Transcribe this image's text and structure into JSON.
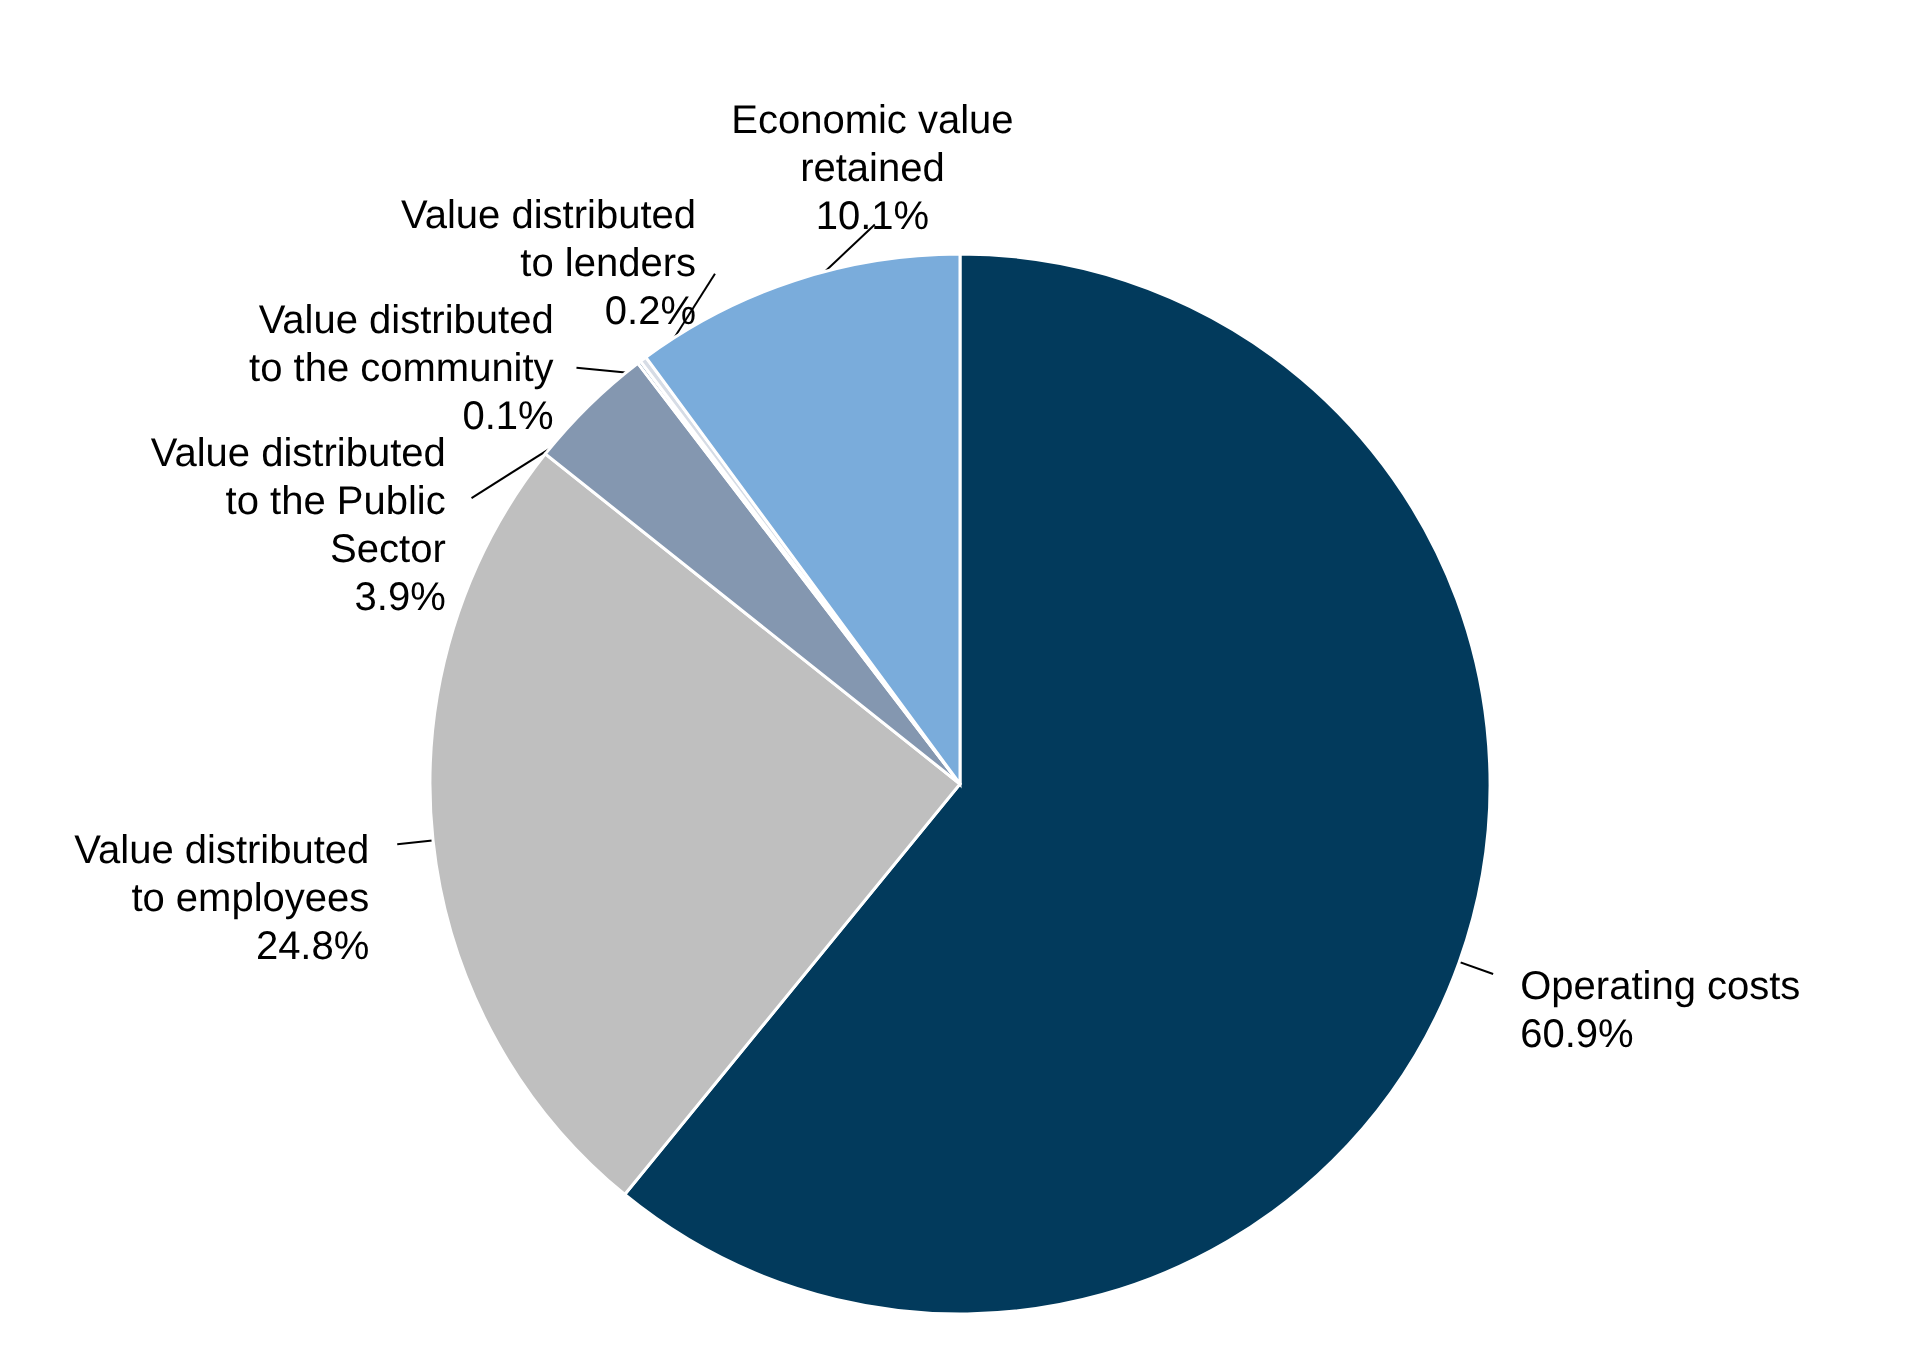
{
  "chart_data": {
    "type": "pie",
    "categories": [
      "Operating costs",
      "Value distributed to employees",
      "Value distributed to the Public Sector",
      "Value distributed to the community",
      "Value distributed to lenders",
      "Economic value retained"
    ],
    "values": [
      60.9,
      24.8,
      3.9,
      0.1,
      0.2,
      10.1
    ],
    "colors": [
      "#023a5c",
      "#bfbfbf",
      "#8497b0",
      "#1f4e79",
      "#d6dce5",
      "#7aacdb"
    ],
    "value_labels": [
      "60.9%",
      "24.8%",
      "3.9%",
      "0.1%",
      "0.2%",
      "10.1%"
    ]
  }
}
